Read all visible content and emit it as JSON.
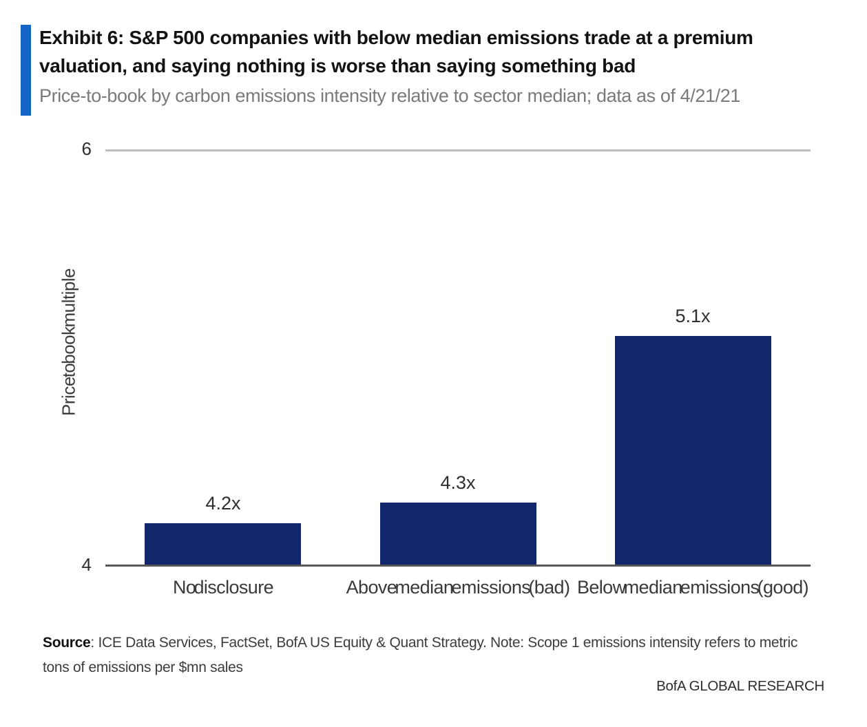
{
  "header": {
    "exhibit_title": "Exhibit 6: S&P 500 companies with below median emissions trade at a premium valuation, and saying nothing is worse than saying something bad",
    "subtitle": "Price-to-book by carbon emissions intensity relative to sector median; data as of 4/21/21"
  },
  "chart_data": {
    "type": "bar",
    "categories": [
      "No disclosure",
      "Above median emissions (bad)",
      "Below median emissions (good)"
    ],
    "values": [
      4.2,
      4.3,
      5.1
    ],
    "data_labels": [
      "4.2x",
      "4.3x",
      "5.1x"
    ],
    "title": "",
    "xlabel": "",
    "ylabel": "Price to book multiple",
    "ylim": [
      4,
      6
    ],
    "yticks": [
      "4",
      "6"
    ],
    "legend": "none",
    "grid": "single horizontal gridline at y=6 only",
    "bar_color": "#12266B"
  },
  "footer": {
    "source_label": "Source",
    "source_text": ": ICE Data Services, FactSet, BofA US Equity & Quant Strategy. Note: Scope 1 emissions intensity refers to metric tons of emissions per $mn sales",
    "brand": "BofA GLOBAL RESEARCH"
  },
  "colors": {
    "accent_blue": "#1565C8",
    "bar_navy": "#12266B",
    "gridline_gray": "#BEBEBE",
    "axis_gray": "#56565A",
    "subtitle_gray": "#7A7A7A"
  }
}
